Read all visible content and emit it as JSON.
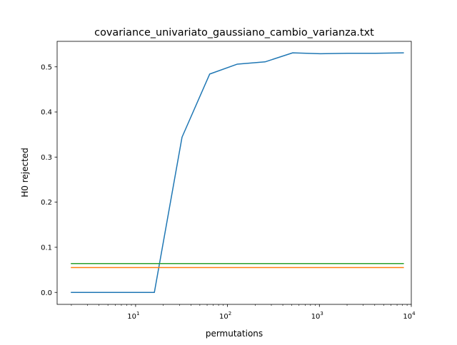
{
  "chart_data": {
    "type": "line",
    "title": "covariance_univariato_gaussiano_cambio_varianza.txt",
    "xlabel": "permutations",
    "ylabel": "H0 rejected",
    "xscale": "log",
    "xlim": [
      1.4,
      10000
    ],
    "ylim": [
      -0.0265,
      0.5565
    ],
    "grid": false,
    "legend": "none",
    "x_ticks": [
      {
        "value": 10,
        "base": "10",
        "exp": "1"
      },
      {
        "value": 100,
        "base": "10",
        "exp": "2"
      },
      {
        "value": 1000,
        "base": "10",
        "exp": "3"
      },
      {
        "value": 10000,
        "base": "10",
        "exp": "4"
      }
    ],
    "y_ticks": [
      {
        "value": 0.0,
        "label": "0.0"
      },
      {
        "value": 0.1,
        "label": "0.1"
      },
      {
        "value": 0.2,
        "label": "0.2"
      },
      {
        "value": 0.3,
        "label": "0.3"
      },
      {
        "value": 0.4,
        "label": "0.4"
      },
      {
        "value": 0.5,
        "label": "0.5"
      }
    ],
    "series": [
      {
        "color": "#1f77b4",
        "x": [
          2,
          4,
          8,
          16,
          32,
          64,
          128,
          256,
          512,
          1024,
          2048,
          4096,
          8192
        ],
        "y": [
          0.0,
          0.0,
          0.0,
          0.0,
          0.344,
          0.484,
          0.506,
          0.511,
          0.531,
          0.529,
          0.53,
          0.53,
          0.531
        ]
      },
      {
        "color": "#ff7f0e",
        "x": [
          2,
          4,
          8,
          16,
          32,
          64,
          128,
          256,
          512,
          1024,
          2048,
          4096,
          8192
        ],
        "y": [
          0.055,
          0.055,
          0.055,
          0.055,
          0.055,
          0.055,
          0.055,
          0.055,
          0.055,
          0.055,
          0.055,
          0.055,
          0.055
        ]
      },
      {
        "color": "#2ca02c",
        "x": [
          2,
          4,
          8,
          16,
          32,
          64,
          128,
          256,
          512,
          1024,
          2048,
          4096,
          8192
        ],
        "y": [
          0.064,
          0.064,
          0.064,
          0.064,
          0.064,
          0.064,
          0.064,
          0.064,
          0.064,
          0.064,
          0.064,
          0.064,
          0.064
        ]
      }
    ]
  }
}
